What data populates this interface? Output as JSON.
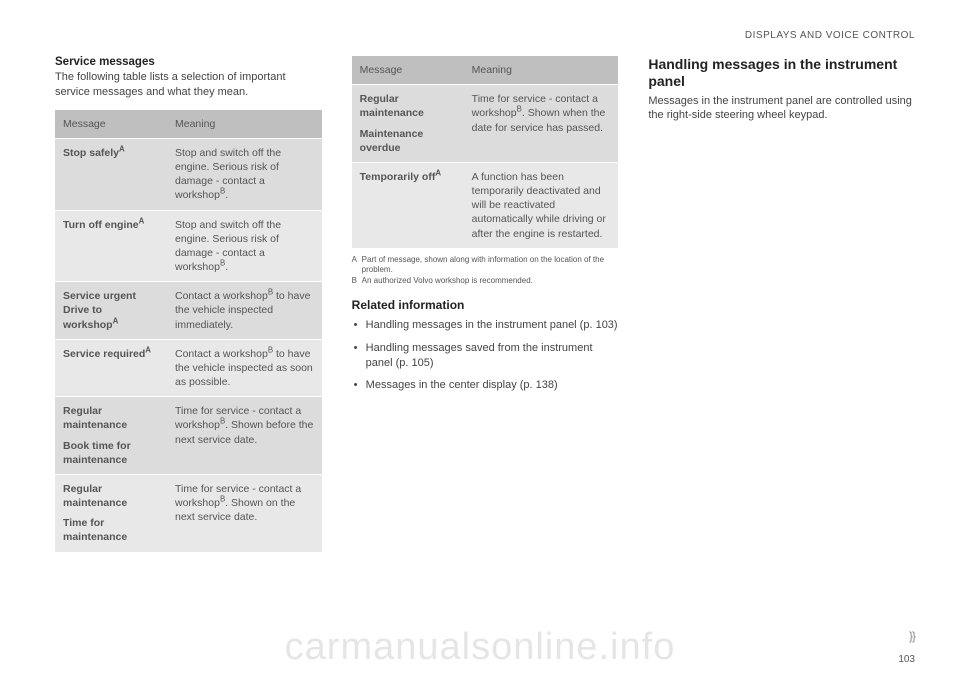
{
  "header": "DISPLAYS AND VOICE CONTROL",
  "pageNumber": "103",
  "continuation": "}}",
  "watermark": "carmanualsonline.info",
  "col1": {
    "heading": "Service messages",
    "intro": "The following table lists a selection of important service messages and what they mean.",
    "table": {
      "headMessage": "Message",
      "headMeaning": "Meaning",
      "rows": [
        {
          "labelHtml": "Stop safely<sup>A</sup>",
          "meaningHtml": "Stop and switch off the engine. Serious risk of damage - contact a workshop<sup>B</sup>."
        },
        {
          "labelHtml": "Turn off engine<sup>A</sup>",
          "meaningHtml": "Stop and switch off the engine. Serious risk of damage - contact a workshop<sup>B</sup>."
        },
        {
          "labelHtml": "Service urgent Drive to workshop<sup>A</sup>",
          "meaningHtml": "Contact a workshop<sup>B</sup> to have the vehicle inspected immediately."
        },
        {
          "labelHtml": "Service required<sup>A</sup>",
          "meaningHtml": "Contact a workshop<sup>B</sup> to have the vehicle inspected as soon as possible."
        },
        {
          "labelHtml": "Regular maintenance<span class=\"sub-label\">Book time for maintenance</span>",
          "meaningHtml": "Time for service - contact a workshop<sup>B</sup>. Shown before the next service date."
        },
        {
          "labelHtml": "Regular maintenance<span class=\"sub-label\">Time for maintenance</span>",
          "meaningHtml": "Time for service - contact a workshop<sup>B</sup>. Shown on the next service date."
        }
      ]
    }
  },
  "col2": {
    "table": {
      "headMessage": "Message",
      "headMeaning": "Meaning",
      "rows": [
        {
          "labelHtml": "Regular maintenance<span class=\"sub-label\">Maintenance overdue</span>",
          "meaningHtml": "Time for service - contact a workshop<sup>B</sup>. Shown when the date for service has passed."
        },
        {
          "labelHtml": "Temporarily off<sup>A</sup>",
          "meaningHtml": "A function has been temporarily deactivated and will be reactivated automatically while driving or after the engine is restarted."
        }
      ]
    },
    "footnotes": [
      {
        "letter": "A",
        "text": "Part of message, shown along with information on the location of the problem."
      },
      {
        "letter": "B",
        "text": "An authorized Volvo workshop is recommended."
      }
    ],
    "relatedHeading": "Related information",
    "relatedItems": [
      "Handling messages in the instrument panel (p. 103)",
      "Handling messages saved from the instrument panel (p. 105)",
      "Messages in the center display (p. 138)"
    ]
  },
  "col3": {
    "heading": "Handling messages in the instrument panel",
    "intro": "Messages in the instrument panel are controlled using the right-side steering wheel keypad."
  }
}
